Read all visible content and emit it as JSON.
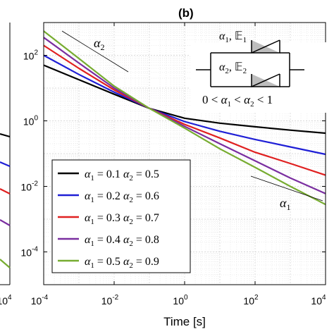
{
  "chart_data": {
    "type": "line",
    "panel_label": "(b)",
    "xlabel": "Time [s]",
    "ylabel": "",
    "x_scale": "log",
    "y_scale": "log",
    "xlim": [
      0.0001,
      10000
    ],
    "ylim": [
      1e-05,
      1000
    ],
    "grid": true,
    "x_ticks": [
      {
        "base": "10",
        "exp": "-4"
      },
      {
        "base": "10",
        "exp": "-2"
      },
      {
        "base": "10",
        "exp": "0"
      },
      {
        "base": "10",
        "exp": "2"
      },
      {
        "base": "10",
        "exp": "4"
      }
    ],
    "y_ticks": [
      {
        "base": "10",
        "exp": "2"
      },
      {
        "base": "10",
        "exp": "0"
      },
      {
        "base": "10",
        "exp": "-2"
      },
      {
        "base": "10",
        "exp": "-4"
      }
    ],
    "x_ticks_left_panel": [
      {
        "base": "10",
        "exp": "4"
      }
    ],
    "legend_position": "lower-left",
    "series": [
      {
        "name": "α1 = 0.1 α2 = 0.5",
        "a1": "0.1",
        "a2": "0.5",
        "color": "#000000",
        "x": [
          0.0001,
          0.001,
          0.01,
          0.1,
          1,
          10,
          100,
          1000,
          10000
        ],
        "y": [
          50,
          18,
          6.5,
          2.4,
          1.2,
          0.85,
          0.66,
          0.52,
          0.42
        ]
      },
      {
        "name": "α1 = 0.2 α2 = 0.6",
        "a1": "0.2",
        "a2": "0.6",
        "color": "#1f1fd6",
        "x": [
          0.0001,
          0.001,
          0.01,
          0.1,
          1,
          10,
          100,
          1000,
          10000
        ],
        "y": [
          100,
          26,
          7.5,
          2.4,
          0.95,
          0.48,
          0.27,
          0.16,
          0.095
        ]
      },
      {
        "name": "α1 = 0.3 α2 = 0.7",
        "a1": "0.3",
        "a2": "0.7",
        "color": "#e02020",
        "x": [
          0.0001,
          0.001,
          0.01,
          0.1,
          1,
          10,
          100,
          1000,
          10000
        ],
        "y": [
          200,
          40,
          8.8,
          2.4,
          0.78,
          0.3,
          0.11,
          0.05,
          0.022
        ]
      },
      {
        "name": "α1 = 0.4 α2 = 0.8",
        "a1": "0.4",
        "a2": "0.8",
        "color": "#7a2ea0",
        "x": [
          0.0001,
          0.001,
          0.01,
          0.1,
          1,
          10,
          100,
          1000,
          10000
        ],
        "y": [
          350,
          58,
          10,
          2.4,
          0.68,
          0.2,
          0.06,
          0.018,
          0.006
        ]
      },
      {
        "name": "α1 = 0.5 α2 = 0.9",
        "a1": "0.5",
        "a2": "0.9",
        "color": "#77ac30",
        "x": [
          0.0001,
          0.001,
          0.01,
          0.1,
          1,
          10,
          100,
          1000,
          10000
        ],
        "y": [
          550,
          80,
          11.5,
          2.4,
          0.6,
          0.14,
          0.038,
          0.01,
          0.0028
        ]
      }
    ],
    "annotations": {
      "alpha2_label": "α",
      "alpha2_sub": "2",
      "alpha1_label": "α",
      "alpha1_sub": "1",
      "inset_top": "α1, E1",
      "inset_top_a": "α",
      "inset_top_a_sub": "1",
      "inset_top_e": "𝔼",
      "inset_top_e_sub": "1",
      "inset_bottom_a": "α",
      "inset_bottom_a_sub": "2",
      "inset_bottom_e": "𝔼",
      "inset_bottom_e_sub": "2",
      "inequality": "0 < α1 < α2 < 1",
      "ineq_0": "0 < ",
      "ineq_a": "α",
      "ineq_1": "1",
      "ineq_lt": " < ",
      "ineq_a2": "α",
      "ineq_2": "2",
      "ineq_end": " < 1"
    },
    "left_panel_colors": [
      "#000000",
      "#1f1fd6",
      "#e02020",
      "#7a2ea0",
      "#77ac30"
    ]
  }
}
